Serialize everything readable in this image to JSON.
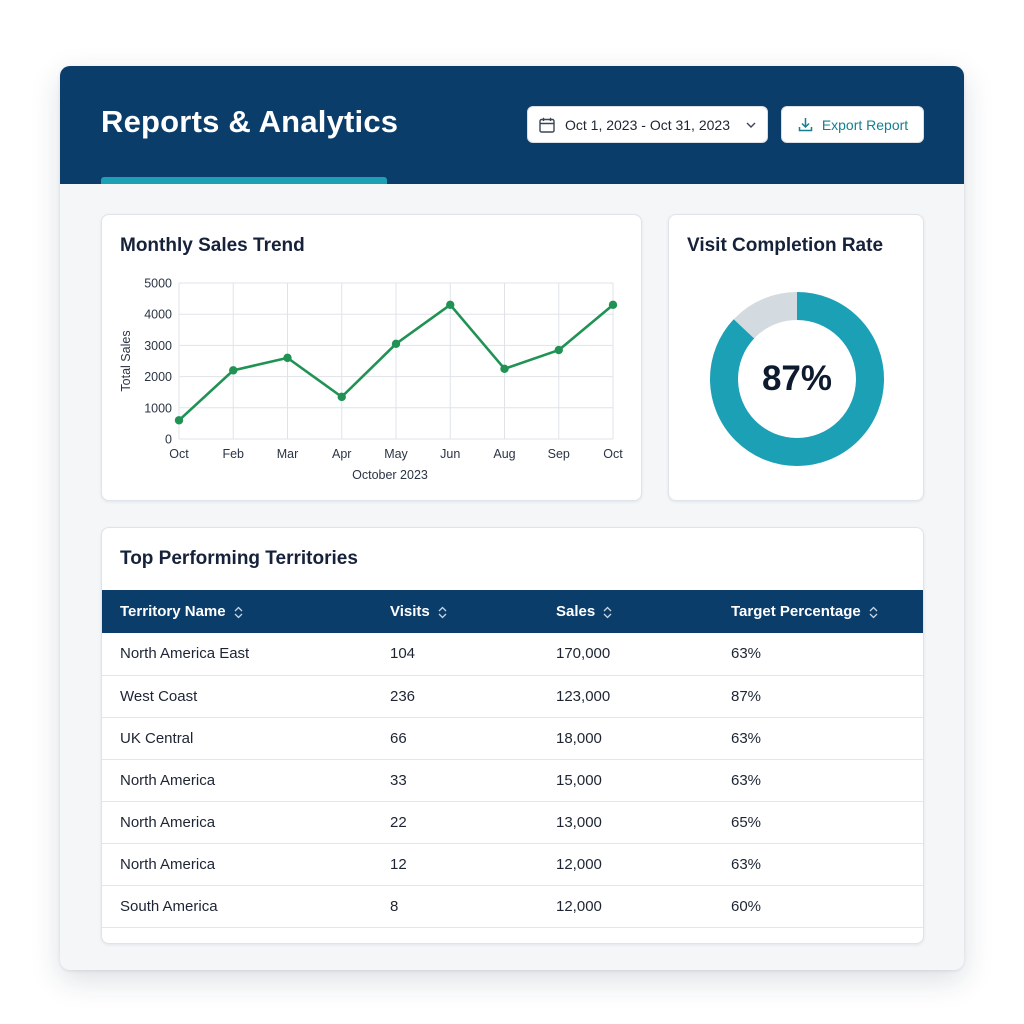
{
  "header": {
    "title": "Reports & Analytics",
    "date_range": "Oct 1, 2023 - Oct 31, 2023",
    "export_label": "Export Report"
  },
  "colors": {
    "header_bg": "#0b3d6b",
    "accent": "#1ba0b5",
    "line": "#1f9254",
    "donut_track": "#d3dbe1"
  },
  "icons": {
    "date": "calendar-icon",
    "dropdown": "chevron-down-icon",
    "export": "download-icon",
    "sort": "sort-icon"
  },
  "sales_card": {
    "title": "Monthly Sales Trend"
  },
  "chart_data": {
    "type": "line",
    "categories": [
      "Oct",
      "Feb",
      "Mar",
      "Apr",
      "May",
      "Jun",
      "Aug",
      "Sep",
      "Oct"
    ],
    "values": [
      600,
      2200,
      2600,
      1350,
      3050,
      4300,
      2250,
      2850,
      4300
    ],
    "yticks": [
      0,
      1000,
      2000,
      3000,
      4000,
      5000
    ],
    "ylim": [
      0,
      5000
    ],
    "xlabel": "October 2023",
    "ylabel": "Total Sales",
    "grid": true
  },
  "completion_card": {
    "title": "Visit Completion Rate",
    "value": 0.87,
    "label": "87%"
  },
  "table": {
    "title": "Top Performing Territories",
    "columns": [
      "Territory Name",
      "Visits",
      "Sales",
      "Target Percentage"
    ],
    "rows": [
      [
        "North America East",
        "104",
        "170,000",
        "63%"
      ],
      [
        "West Coast",
        "236",
        "123,000",
        "87%"
      ],
      [
        "UK Central",
        "66",
        "18,000",
        "63%"
      ],
      [
        "North America",
        "33",
        "15,000",
        "63%"
      ],
      [
        "North America",
        "22",
        "13,000",
        "65%"
      ],
      [
        "North America",
        "12",
        "12,000",
        "63%"
      ],
      [
        "South America",
        "8",
        "12,000",
        "60%"
      ]
    ]
  }
}
